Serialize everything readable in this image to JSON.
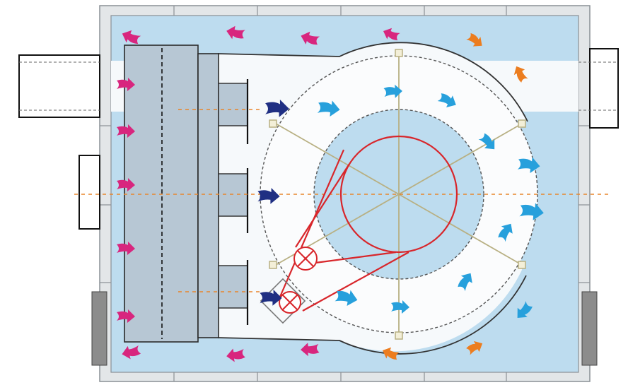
{
  "colors": {
    "room_fill": "#bddcef",
    "wall_light": "#e3e6e8",
    "wall_stroke": "#8a9095",
    "panel_fill": "#b7c7d4",
    "panel_stroke": "#2a2a2a",
    "ring_fill": "#fbfcfd",
    "inner_fill": "#bddcef",
    "arrow_magenta": "#d8267e",
    "arrow_cyan": "#27a0dc",
    "arrow_navy": "#1f2f83",
    "arrow_orange": "#ec7d1f",
    "belt_red": "#d8262b",
    "spoke": "#b8b083",
    "axis_orange": "#e8862c",
    "dark_grey": "#8c8c8c"
  },
  "icons": {
    "magenta": "magenta-airflow-arrow-icon",
    "cyan": "cyan-airflow-arrow-icon",
    "navy": "navy-inlet-arrow-icon",
    "orange": "orange-return-arrow-icon",
    "motor": "motor-cross-circle-icon"
  }
}
